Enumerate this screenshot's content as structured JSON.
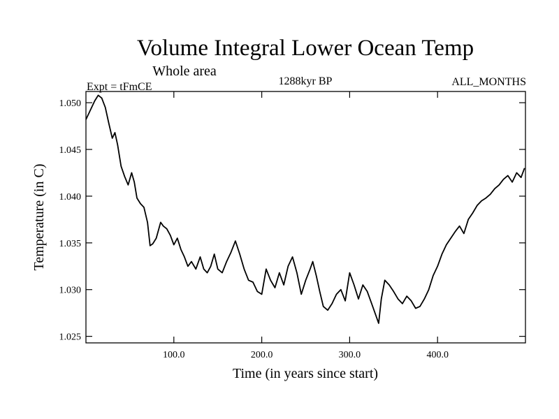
{
  "chart_data": {
    "type": "line",
    "title": "Volume Integral Lower Ocean Temp",
    "subtitle": "Whole area",
    "experiment_label": "Expt = tFmCE",
    "period_label": "1288kyr BP",
    "months_label": "ALL_MONTHS",
    "xlabel": "Time (in years since start)",
    "ylabel": "Temperature (in C)",
    "xlim": [
      0,
      500
    ],
    "ylim": [
      1.0243,
      1.0512
    ],
    "xticks": [
      {
        "value": 100,
        "label": "100.0"
      },
      {
        "value": 200,
        "label": "200.0"
      },
      {
        "value": 300,
        "label": "300.0"
      },
      {
        "value": 400,
        "label": "400.0"
      }
    ],
    "yticks": [
      {
        "value": 1.025,
        "label": "1.025"
      },
      {
        "value": 1.03,
        "label": "1.030"
      },
      {
        "value": 1.035,
        "label": "1.035"
      },
      {
        "value": 1.04,
        "label": "1.040"
      },
      {
        "value": 1.045,
        "label": "1.045"
      },
      {
        "value": 1.05,
        "label": "1.050"
      }
    ],
    "series": [
      {
        "name": "Volume Integral Lower Ocean Temp",
        "x": [
          0,
          5,
          10,
          14,
          18,
          22,
          26,
          30,
          33,
          36,
          40,
          44,
          48,
          52,
          55,
          58,
          62,
          66,
          70,
          73,
          76,
          80,
          85,
          88,
          92,
          96,
          100,
          104,
          108,
          112,
          116,
          120,
          125,
          130,
          134,
          138,
          142,
          146,
          150,
          155,
          160,
          165,
          170,
          175,
          180,
          185,
          190,
          195,
          200,
          205,
          210,
          215,
          220,
          225,
          230,
          235,
          240,
          245,
          250,
          255,
          258,
          262,
          266,
          270,
          275,
          280,
          285,
          290,
          295,
          300,
          305,
          310,
          315,
          320,
          325,
          330,
          333,
          336,
          340,
          345,
          350,
          355,
          360,
          365,
          370,
          375,
          380,
          385,
          390,
          395,
          400,
          405,
          410,
          415,
          420,
          425,
          430,
          435,
          440,
          445,
          450,
          455,
          460,
          465,
          470,
          475,
          480,
          485,
          490,
          495,
          499
        ],
        "values": [
          1.0482,
          1.0492,
          1.0502,
          1.0508,
          1.0505,
          1.0495,
          1.0478,
          1.0462,
          1.0468,
          1.0455,
          1.0432,
          1.0421,
          1.0412,
          1.0425,
          1.0415,
          1.0398,
          1.0392,
          1.0388,
          1.0372,
          1.0347,
          1.0349,
          1.0355,
          1.0372,
          1.0368,
          1.0365,
          1.0358,
          1.0348,
          1.0355,
          1.0343,
          1.0335,
          1.0325,
          1.033,
          1.0322,
          1.0335,
          1.0322,
          1.0318,
          1.0325,
          1.0338,
          1.0322,
          1.0318,
          1.033,
          1.034,
          1.0352,
          1.0338,
          1.0322,
          1.031,
          1.0308,
          1.0298,
          1.0295,
          1.0322,
          1.031,
          1.0302,
          1.0318,
          1.0305,
          1.0325,
          1.0335,
          1.0318,
          1.0295,
          1.031,
          1.0322,
          1.033,
          1.0315,
          1.0298,
          1.0282,
          1.0278,
          1.0285,
          1.0295,
          1.03,
          1.0288,
          1.0318,
          1.0305,
          1.029,
          1.0305,
          1.0298,
          1.0285,
          1.0272,
          1.0264,
          1.029,
          1.031,
          1.0305,
          1.0298,
          1.029,
          1.0285,
          1.0293,
          1.0288,
          1.028,
          1.0282,
          1.029,
          1.03,
          1.0315,
          1.0325,
          1.0338,
          1.0348,
          1.0355,
          1.0362,
          1.0368,
          1.036,
          1.0375,
          1.0382,
          1.039,
          1.0395,
          1.0398,
          1.0402,
          1.0408,
          1.0412,
          1.0418,
          1.0422,
          1.0415,
          1.0425,
          1.042,
          1.043
        ]
      }
    ]
  }
}
